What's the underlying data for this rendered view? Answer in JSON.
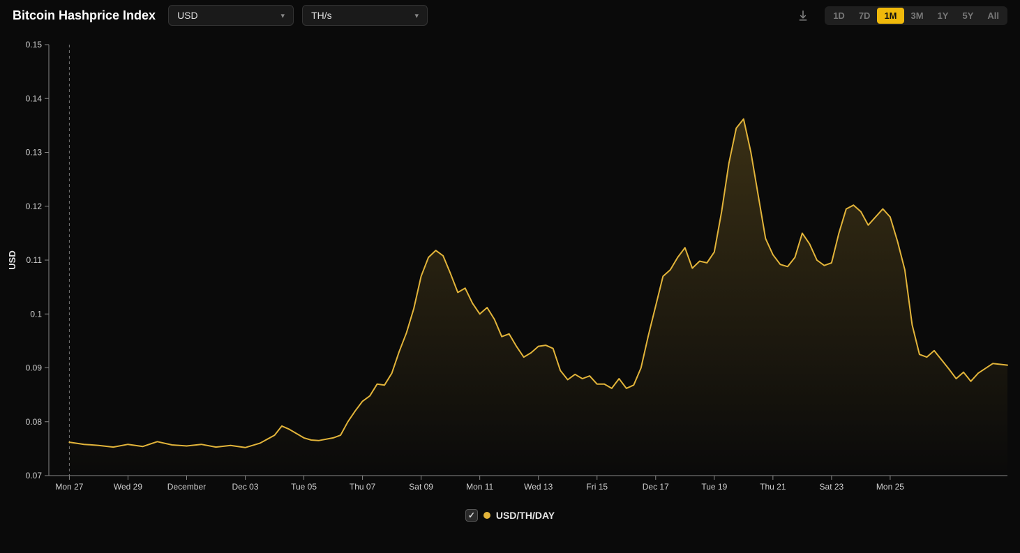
{
  "header": {
    "title": "Bitcoin Hashprice Index",
    "currency_select": {
      "value": "USD"
    },
    "unit_select": {
      "value": "TH/s"
    },
    "download_icon": "download-icon",
    "ranges": [
      {
        "label": "1D",
        "active": false
      },
      {
        "label": "7D",
        "active": false
      },
      {
        "label": "1M",
        "active": true
      },
      {
        "label": "3M",
        "active": false
      },
      {
        "label": "1Y",
        "active": false
      },
      {
        "label": "5Y",
        "active": false
      },
      {
        "label": "All",
        "active": false
      }
    ]
  },
  "chart": {
    "type": "area-line",
    "y_axis": {
      "title": "USD",
      "min": 0.07,
      "max": 0.15,
      "tick_step": 0.01,
      "ticks": [
        "0.07",
        "0.08",
        "0.09",
        "0.1",
        "0.11",
        "0.12",
        "0.13",
        "0.14",
        "0.15"
      ],
      "label_fontsize": 12,
      "title_fontsize": 13
    },
    "x_axis": {
      "ticks": [
        "Mon 27",
        "Wed 29",
        "December",
        "Dec 03",
        "Tue 05",
        "Thu 07",
        "Sat 09",
        "Mon 11",
        "Wed 13",
        "Fri 15",
        "Dec 17",
        "Tue 19",
        "Thu 21",
        "Sat 23",
        "Mon 25"
      ],
      "label_fontsize": 12
    },
    "series": [
      {
        "name": "USD/TH/DAY",
        "color": "#e2b43a",
        "line_width": 2,
        "area_fill": true,
        "area_gradient_top": "rgba(226,180,58,0.22)",
        "area_gradient_bottom": "rgba(226,180,58,0.0)",
        "points": [
          [
            0.0,
            0.0762
          ],
          [
            0.5,
            0.0758
          ],
          [
            1.0,
            0.0756
          ],
          [
            1.5,
            0.0753
          ],
          [
            2.0,
            0.0758
          ],
          [
            2.5,
            0.0754
          ],
          [
            3.0,
            0.0763
          ],
          [
            3.5,
            0.0757
          ],
          [
            4.0,
            0.0755
          ],
          [
            4.5,
            0.0758
          ],
          [
            5.0,
            0.0753
          ],
          [
            5.5,
            0.0756
          ],
          [
            6.0,
            0.0752
          ],
          [
            6.5,
            0.076
          ],
          [
            7.0,
            0.0775
          ],
          [
            7.25,
            0.0792
          ],
          [
            7.5,
            0.0786
          ],
          [
            7.75,
            0.0778
          ],
          [
            8.0,
            0.077
          ],
          [
            8.25,
            0.0766
          ],
          [
            8.5,
            0.0765
          ],
          [
            9.0,
            0.077
          ],
          [
            9.25,
            0.0775
          ],
          [
            9.5,
            0.08
          ],
          [
            9.75,
            0.082
          ],
          [
            10.0,
            0.0838
          ],
          [
            10.25,
            0.0848
          ],
          [
            10.5,
            0.087
          ],
          [
            10.75,
            0.0868
          ],
          [
            11.0,
            0.089
          ],
          [
            11.25,
            0.093
          ],
          [
            11.5,
            0.0965
          ],
          [
            11.75,
            0.101
          ],
          [
            12.0,
            0.107
          ],
          [
            12.25,
            0.1105
          ],
          [
            12.5,
            0.1118
          ],
          [
            12.75,
            0.1108
          ],
          [
            13.0,
            0.1075
          ],
          [
            13.25,
            0.104
          ],
          [
            13.5,
            0.1048
          ],
          [
            13.75,
            0.102
          ],
          [
            14.0,
            0.1
          ],
          [
            14.25,
            0.1012
          ],
          [
            14.5,
            0.099
          ],
          [
            14.75,
            0.0958
          ],
          [
            15.0,
            0.0963
          ],
          [
            15.25,
            0.094
          ],
          [
            15.5,
            0.092
          ],
          [
            15.75,
            0.0928
          ],
          [
            16.0,
            0.094
          ],
          [
            16.25,
            0.0942
          ],
          [
            16.5,
            0.0936
          ],
          [
            16.75,
            0.0895
          ],
          [
            17.0,
            0.0878
          ],
          [
            17.25,
            0.0888
          ],
          [
            17.5,
            0.088
          ],
          [
            17.75,
            0.0885
          ],
          [
            18.0,
            0.087
          ],
          [
            18.25,
            0.087
          ],
          [
            18.5,
            0.0862
          ],
          [
            18.75,
            0.088
          ],
          [
            19.0,
            0.0862
          ],
          [
            19.25,
            0.0868
          ],
          [
            19.5,
            0.09
          ],
          [
            19.75,
            0.096
          ],
          [
            20.0,
            0.1015
          ],
          [
            20.25,
            0.107
          ],
          [
            20.5,
            0.1082
          ],
          [
            20.75,
            0.1105
          ],
          [
            21.0,
            0.1123
          ],
          [
            21.25,
            0.1085
          ],
          [
            21.5,
            0.1098
          ],
          [
            21.75,
            0.1095
          ],
          [
            22.0,
            0.1115
          ],
          [
            22.25,
            0.119
          ],
          [
            22.5,
            0.128
          ],
          [
            22.75,
            0.1345
          ],
          [
            23.0,
            0.1362
          ],
          [
            23.25,
            0.13
          ],
          [
            23.5,
            0.122
          ],
          [
            23.75,
            0.114
          ],
          [
            24.0,
            0.111
          ],
          [
            24.25,
            0.1092
          ],
          [
            24.5,
            0.1088
          ],
          [
            24.75,
            0.1105
          ],
          [
            25.0,
            0.115
          ],
          [
            25.25,
            0.113
          ],
          [
            25.5,
            0.11
          ],
          [
            25.75,
            0.109
          ],
          [
            26.0,
            0.1095
          ],
          [
            26.25,
            0.115
          ],
          [
            26.5,
            0.1195
          ],
          [
            26.75,
            0.1202
          ],
          [
            27.0,
            0.119
          ],
          [
            27.25,
            0.1165
          ],
          [
            27.5,
            0.118
          ],
          [
            27.75,
            0.1195
          ],
          [
            28.0,
            0.118
          ],
          [
            28.25,
            0.1135
          ],
          [
            28.5,
            0.1082
          ],
          [
            28.75,
            0.098
          ],
          [
            29.0,
            0.0925
          ],
          [
            29.25,
            0.092
          ],
          [
            29.5,
            0.0932
          ],
          [
            29.75,
            0.0915
          ],
          [
            30.0,
            0.0898
          ],
          [
            30.25,
            0.088
          ],
          [
            30.5,
            0.0892
          ],
          [
            30.75,
            0.0875
          ],
          [
            31.0,
            0.089
          ],
          [
            31.5,
            0.0908
          ],
          [
            32.0,
            0.0905
          ]
        ]
      }
    ],
    "reference_line": {
      "x": 0.0,
      "style": "dashed",
      "color": "#777"
    },
    "background_color": "#0a0a0a",
    "grid": false,
    "axis_line_color": "#888",
    "plot": {
      "x_min": -0.7,
      "x_max": 32.0
    }
  },
  "legend": {
    "items": [
      {
        "label": "USD/TH/DAY",
        "color": "#e2b43a",
        "checked": true
      }
    ]
  },
  "colors": {
    "accent": "#f0b90b",
    "line": "#e2b43a",
    "text": "#e5e5e5",
    "muted": "#888",
    "panel": "#1a1a1a"
  }
}
